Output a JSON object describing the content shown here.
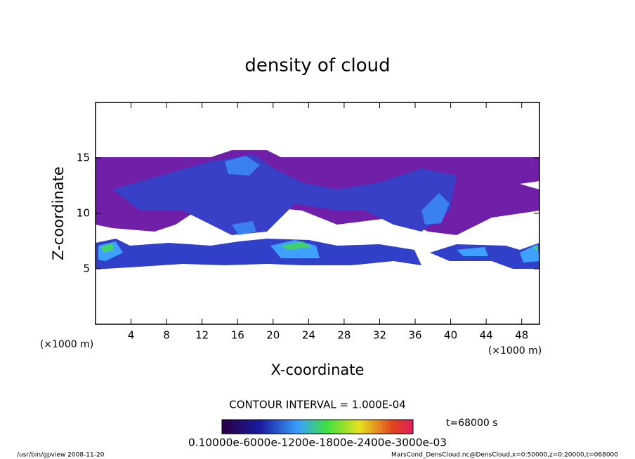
{
  "chart_data": {
    "type": "contour",
    "title": "density of cloud",
    "x_label": "X-coordinate",
    "y_label": "Z-coordinate",
    "x_unit_left": "(×1000 m)",
    "x_unit_right": "(×1000 m)",
    "xlim": [
      0,
      50
    ],
    "ylim": [
      0,
      20
    ],
    "xticks": [
      4,
      8,
      12,
      16,
      20,
      24,
      28,
      32,
      36,
      40,
      44,
      48
    ],
    "yticks": [
      5,
      10,
      15
    ],
    "contour_interval": "CONTOUR INTERVAL = 1.000E-04",
    "time_label": "t=68000 s",
    "colorbar_labels": "0.10000e-6000e-1200e-1800e-2400e-3000e-03",
    "footer_left": "/usr/bin/gpview   2008-11-20",
    "footer_right": "MarsCond_DensCloud.nc@DensCloud,x=0:50000,z=0:20000,t=068000"
  }
}
